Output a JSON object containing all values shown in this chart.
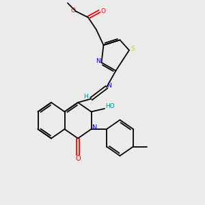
{
  "background_color": "#ebebeb",
  "figure_size": [
    3.0,
    3.0
  ],
  "dpi": 100,
  "colors": {
    "C": "#000000",
    "N": "#0000cc",
    "O": "#ff0000",
    "S": "#cccc00",
    "H_label": "#009090"
  }
}
